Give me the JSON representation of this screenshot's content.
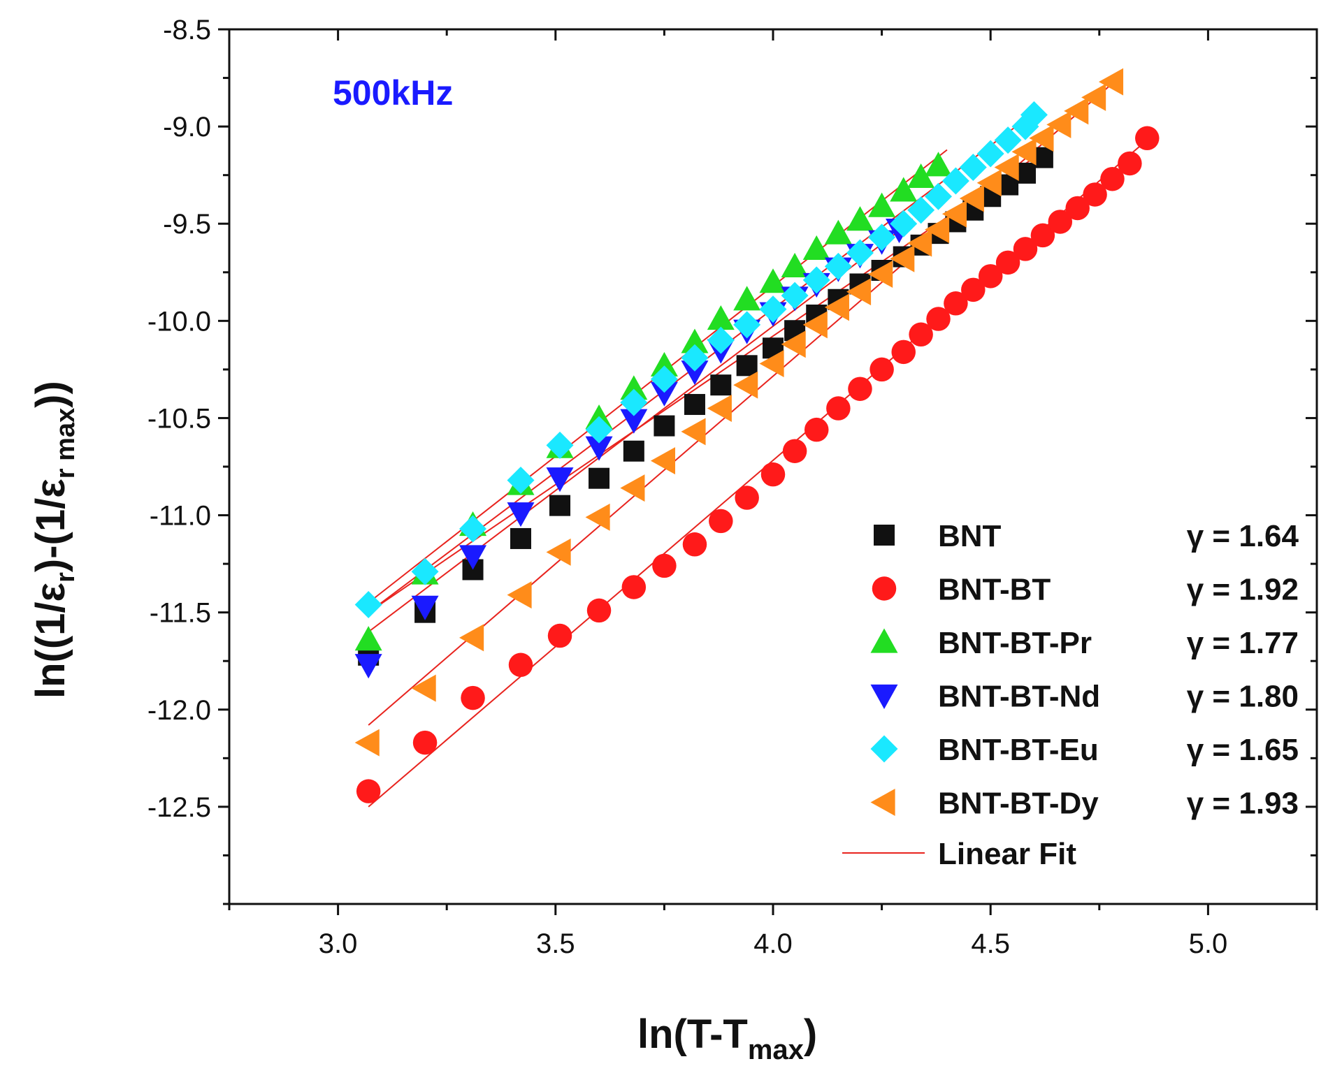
{
  "chart_data": {
    "type": "scatter",
    "title": "",
    "annotation": "500kHz",
    "annotation_color": "#1a1aff",
    "xlabel": "ln(T-T",
    "xlabel_sub": "max",
    "xlabel_close": ")",
    "ylabel": {
      "p1": "ln((1/ε",
      "sub1": "r",
      "p2": ")-(1/ε",
      "sub2": "r max",
      "p3": "))"
    },
    "xlim": [
      2.75,
      5.25
    ],
    "ylim": [
      -13.0,
      -8.5
    ],
    "xticks": [
      "3.0",
      "3.5",
      "4.0",
      "4.5",
      "5.0"
    ],
    "yticks": [
      "-8.5",
      "-9.0",
      "-9.5",
      "-10.0",
      "-10.5",
      "-11.0",
      "-11.5",
      "-12.0",
      "-12.5"
    ],
    "fit_label": "Linear Fit",
    "fit_color": "#e8231e",
    "series": [
      {
        "name": "BNT",
        "gamma": "γ = 1.64",
        "marker": "square",
        "color": "#111111",
        "fit": [
          [
            3.07,
            -11.5
          ],
          [
            4.62,
            -9.13
          ]
        ],
        "x": [
          3.07,
          3.2,
          3.31,
          3.42,
          3.51,
          3.6,
          3.68,
          3.75,
          3.82,
          3.88,
          3.94,
          4.0,
          4.05,
          4.1,
          4.15,
          4.2,
          4.25,
          4.3,
          4.34,
          4.38,
          4.42,
          4.46,
          4.5,
          4.54,
          4.58,
          4.62
        ],
        "y": [
          -11.72,
          -11.5,
          -11.28,
          -11.12,
          -10.95,
          -10.81,
          -10.67,
          -10.54,
          -10.43,
          -10.33,
          -10.23,
          -10.14,
          -10.05,
          -9.97,
          -9.89,
          -9.81,
          -9.74,
          -9.67,
          -9.61,
          -9.55,
          -9.49,
          -9.43,
          -9.36,
          -9.3,
          -9.24,
          -9.16
        ]
      },
      {
        "name": "BNT-BT",
        "gamma": "γ = 1.92",
        "marker": "circle",
        "color": "#ff1a1a",
        "fit": [
          [
            3.07,
            -12.5
          ],
          [
            4.87,
            -9.05
          ]
        ],
        "x": [
          3.07,
          3.2,
          3.31,
          3.42,
          3.51,
          3.6,
          3.68,
          3.75,
          3.82,
          3.88,
          3.94,
          4.0,
          4.05,
          4.1,
          4.15,
          4.2,
          4.25,
          4.3,
          4.34,
          4.38,
          4.42,
          4.46,
          4.5,
          4.54,
          4.58,
          4.62,
          4.66,
          4.7,
          4.74,
          4.78,
          4.82,
          4.86
        ],
        "y": [
          -12.42,
          -12.17,
          -11.94,
          -11.77,
          -11.62,
          -11.49,
          -11.37,
          -11.26,
          -11.15,
          -11.03,
          -10.91,
          -10.79,
          -10.67,
          -10.56,
          -10.45,
          -10.35,
          -10.25,
          -10.16,
          -10.07,
          -9.99,
          -9.91,
          -9.84,
          -9.77,
          -9.7,
          -9.63,
          -9.56,
          -9.49,
          -9.42,
          -9.35,
          -9.27,
          -9.19,
          -9.06
        ]
      },
      {
        "name": "BNT-BT-Pr",
        "gamma": "γ = 1.77",
        "marker": "triangle-up",
        "color": "#22dd22",
        "fit": [
          [
            3.07,
            -11.45
          ],
          [
            4.4,
            -9.12
          ]
        ],
        "x": [
          3.07,
          3.2,
          3.31,
          3.42,
          3.51,
          3.6,
          3.68,
          3.75,
          3.82,
          3.88,
          3.94,
          4.0,
          4.05,
          4.1,
          4.15,
          4.2,
          4.25,
          4.3,
          4.34,
          4.38
        ],
        "y": [
          -11.64,
          -11.3,
          -11.05,
          -10.84,
          -10.65,
          -10.5,
          -10.35,
          -10.23,
          -10.11,
          -9.99,
          -9.89,
          -9.8,
          -9.72,
          -9.63,
          -9.55,
          -9.48,
          -9.41,
          -9.33,
          -9.26,
          -9.2
        ]
      },
      {
        "name": "BNT-BT-Nd",
        "gamma": "γ = 1.80",
        "marker": "triangle-down",
        "color": "#1a1aff",
        "fit": [
          [
            3.07,
            -11.6
          ],
          [
            4.3,
            -9.52
          ]
        ],
        "x": [
          3.07,
          3.2,
          3.31,
          3.42,
          3.51,
          3.6,
          3.68,
          3.75,
          3.82,
          3.88,
          3.94,
          4.0,
          4.05,
          4.1,
          4.15,
          4.2,
          4.25,
          4.29
        ],
        "y": [
          -11.77,
          -11.47,
          -11.21,
          -10.99,
          -10.81,
          -10.65,
          -10.51,
          -10.37,
          -10.26,
          -10.15,
          -10.05,
          -9.96,
          -9.88,
          -9.81,
          -9.73,
          -9.66,
          -9.59,
          -9.53
        ]
      },
      {
        "name": "BNT-BT-Eu",
        "gamma": "γ = 1.65",
        "marker": "diamond",
        "color": "#1ae8ff",
        "fit": [
          [
            3.07,
            -11.5
          ],
          [
            4.6,
            -8.93
          ]
        ],
        "x": [
          3.07,
          3.2,
          3.31,
          3.42,
          3.51,
          3.6,
          3.68,
          3.75,
          3.82,
          3.88,
          3.94,
          4.0,
          4.05,
          4.1,
          4.15,
          4.2,
          4.25,
          4.3,
          4.34,
          4.38,
          4.42,
          4.46,
          4.5,
          4.54,
          4.58,
          4.6
        ],
        "y": [
          -11.46,
          -11.29,
          -11.07,
          -10.82,
          -10.64,
          -10.56,
          -10.42,
          -10.3,
          -10.19,
          -10.1,
          -10.02,
          -9.94,
          -9.87,
          -9.79,
          -9.72,
          -9.65,
          -9.57,
          -9.5,
          -9.43,
          -9.36,
          -9.28,
          -9.21,
          -9.14,
          -9.07,
          -9.0,
          -8.94
        ]
      },
      {
        "name": "BNT-BT-Dy",
        "gamma": "γ = 1.93",
        "marker": "triangle-left",
        "color": "#ff8c1a",
        "fit": [
          [
            3.07,
            -12.08
          ],
          [
            4.8,
            -8.74
          ]
        ],
        "x": [
          3.07,
          3.2,
          3.31,
          3.42,
          3.51,
          3.6,
          3.68,
          3.75,
          3.82,
          3.88,
          3.94,
          4.0,
          4.05,
          4.1,
          4.15,
          4.2,
          4.25,
          4.3,
          4.34,
          4.38,
          4.42,
          4.46,
          4.5,
          4.54,
          4.58,
          4.62,
          4.66,
          4.7,
          4.74,
          4.78
        ],
        "y": [
          -12.17,
          -11.89,
          -11.63,
          -11.41,
          -11.19,
          -11.01,
          -10.86,
          -10.72,
          -10.57,
          -10.45,
          -10.33,
          -10.22,
          -10.12,
          -10.02,
          -9.93,
          -9.85,
          -9.76,
          -9.68,
          -9.6,
          -9.53,
          -9.45,
          -9.37,
          -9.29,
          -9.21,
          -9.13,
          -9.06,
          -8.99,
          -8.92,
          -8.85,
          -8.77
        ]
      }
    ]
  }
}
